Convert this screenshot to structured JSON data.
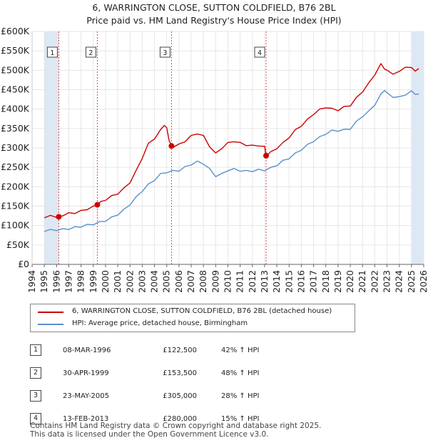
{
  "title": {
    "line1": "6, WARRINGTON CLOSE, SUTTON COLDFIELD, B76 2BL",
    "line2": "Price paid vs. HM Land Registry's House Price Index (HPI)"
  },
  "colors": {
    "price": "#cc0000",
    "hpi": "#5b8fcc",
    "band": "#dde8f5",
    "marker_line": "#cc0000"
  },
  "chart_data": {
    "type": "line",
    "title": "6, WARRINGTON CLOSE, SUTTON COLDFIELD, B76 2BL — Price paid vs. HM Land Registry's House Price Index (HPI)",
    "xlim": [
      1994,
      2026
    ],
    "ylim": [
      0,
      600000
    ],
    "xticks": [
      "1994",
      "1995",
      "1996",
      "1997",
      "1998",
      "1999",
      "2000",
      "2001",
      "2002",
      "2003",
      "2004",
      "2005",
      "2006",
      "2007",
      "2008",
      "2009",
      "2010",
      "2011",
      "2012",
      "2013",
      "2014",
      "2015",
      "2016",
      "2017",
      "2018",
      "2019",
      "2020",
      "2021",
      "2022",
      "2023",
      "2024",
      "2025",
      "2026"
    ],
    "yticks": [
      {
        "value": 0,
        "label": "£0"
      },
      {
        "value": 50000,
        "label": "£50K"
      },
      {
        "value": 100000,
        "label": "£100K"
      },
      {
        "value": 150000,
        "label": "£150K"
      },
      {
        "value": 200000,
        "label": "£200K"
      },
      {
        "value": 250000,
        "label": "£250K"
      },
      {
        "value": 300000,
        "label": "£300K"
      },
      {
        "value": 350000,
        "label": "£350K"
      },
      {
        "value": 400000,
        "label": "£400K"
      },
      {
        "value": 450000,
        "label": "£450K"
      },
      {
        "value": 500000,
        "label": "£500K"
      },
      {
        "value": 550000,
        "label": "£550K"
      },
      {
        "value": 600000,
        "label": "£600K"
      }
    ],
    "shaded_ranges": [
      [
        1995.0,
        1996.18
      ],
      [
        2025.0,
        2026.0
      ]
    ],
    "series": [
      {
        "name": "6, WARRINGTON CLOSE, SUTTON COLDFIELD, B76 2BL (detached house)",
        "x": [
          1995.0,
          1995.5,
          1996.0,
          1996.18,
          1996.5,
          1997.0,
          1997.5,
          1998.0,
          1998.5,
          1999.0,
          1999.33,
          1999.6,
          2000.0,
          2000.5,
          2001.0,
          2001.5,
          2002.0,
          2002.5,
          2003.0,
          2003.5,
          2004.0,
          2004.5,
          2004.8,
          2005.0,
          2005.2,
          2005.39,
          2005.6,
          2006.0,
          2006.5,
          2007.0,
          2007.5,
          2008.0,
          2008.5,
          2009.0,
          2009.5,
          2010.0,
          2010.5,
          2011.0,
          2011.5,
          2012.0,
          2012.5,
          2013.0,
          2013.12,
          2013.5,
          2014.0,
          2014.5,
          2015.0,
          2015.5,
          2016.0,
          2016.5,
          2017.0,
          2017.5,
          2018.0,
          2018.5,
          2019.0,
          2019.5,
          2020.0,
          2020.5,
          2021.0,
          2021.5,
          2022.0,
          2022.5,
          2022.8,
          2023.0,
          2023.5,
          2024.0,
          2024.5,
          2025.0,
          2025.3,
          2025.6
        ],
        "y": [
          122000,
          124000,
          123000,
          122500,
          127000,
          131000,
          133000,
          137000,
          143000,
          148000,
          153500,
          160000,
          167000,
          175000,
          183000,
          195000,
          212000,
          240000,
          275000,
          310000,
          325000,
          345000,
          360000,
          350000,
          320000,
          305000,
          305000,
          308000,
          318000,
          330000,
          338000,
          330000,
          305000,
          285000,
          300000,
          312000,
          318000,
          312000,
          308000,
          305000,
          307000,
          302000,
          280000,
          288000,
          300000,
          312000,
          328000,
          345000,
          358000,
          372000,
          388000,
          398000,
          405000,
          400000,
          398000,
          405000,
          410000,
          428000,
          446000,
          465000,
          490000,
          515000,
          505000,
          498000,
          492000,
          495000,
          510000,
          505000,
          500000,
          502000
        ]
      },
      {
        "name": "HPI: Average price, detached house, Birmingham",
        "x": [
          1995.0,
          1995.5,
          1996.0,
          1996.5,
          1997.0,
          1997.5,
          1998.0,
          1998.5,
          1999.0,
          1999.5,
          2000.0,
          2000.5,
          2001.0,
          2001.5,
          2002.0,
          2002.5,
          2003.0,
          2003.5,
          2004.0,
          2004.5,
          2005.0,
          2005.5,
          2006.0,
          2006.5,
          2007.0,
          2007.5,
          2008.0,
          2008.5,
          2009.0,
          2009.5,
          2010.0,
          2010.5,
          2011.0,
          2011.5,
          2012.0,
          2012.5,
          2013.0,
          2013.5,
          2014.0,
          2014.5,
          2015.0,
          2015.5,
          2016.0,
          2016.5,
          2017.0,
          2017.5,
          2018.0,
          2018.5,
          2019.0,
          2019.5,
          2020.0,
          2020.5,
          2021.0,
          2021.5,
          2022.0,
          2022.5,
          2022.8,
          2023.0,
          2023.5,
          2024.0,
          2024.5,
          2025.0,
          2025.3,
          2025.6
        ],
        "y": [
          87000,
          88000,
          89000,
          90000,
          92000,
          95000,
          98000,
          101000,
          104000,
          108000,
          113000,
          120000,
          129000,
          140000,
          155000,
          172000,
          190000,
          205000,
          218000,
          232000,
          238000,
          240000,
          242000,
          250000,
          258000,
          264000,
          260000,
          245000,
          228000,
          232000,
          243000,
          245000,
          242000,
          240000,
          241000,
          243000,
          243000,
          248000,
          256000,
          266000,
          274000,
          285000,
          296000,
          307000,
          318000,
          327000,
          337000,
          344000,
          345000,
          346000,
          350000,
          367000,
          382000,
          393000,
          412000,
          437000,
          450000,
          440000,
          432000,
          430000,
          438000,
          445000,
          440000,
          437000
        ]
      }
    ],
    "sales": [
      {
        "n": "1",
        "x": 1996.18,
        "y": 122500
      },
      {
        "n": "2",
        "x": 1999.33,
        "y": 153500
      },
      {
        "n": "3",
        "x": 2005.39,
        "y": 305000
      },
      {
        "n": "4",
        "x": 2013.12,
        "y": 280000
      }
    ]
  },
  "legend": {
    "price_label": "6, WARRINGTON CLOSE, SUTTON COLDFIELD, B76 2BL (detached house)",
    "hpi_label": "HPI: Average price, detached house, Birmingham"
  },
  "transactions": [
    {
      "n": "1",
      "date": "08-MAR-1996",
      "price": "£122,500",
      "hpi": "42% ↑ HPI"
    },
    {
      "n": "2",
      "date": "30-APR-1999",
      "price": "£153,500",
      "hpi": "48% ↑ HPI"
    },
    {
      "n": "3",
      "date": "23-MAY-2005",
      "price": "£305,000",
      "hpi": "28% ↑ HPI"
    },
    {
      "n": "4",
      "date": "13-FEB-2013",
      "price": "£280,000",
      "hpi": "15% ↑ HPI"
    }
  ],
  "footer": {
    "line1": "Contains HM Land Registry data © Crown copyright and database right 2025.",
    "line2": "This data is licensed under the Open Government Licence v3.0."
  }
}
